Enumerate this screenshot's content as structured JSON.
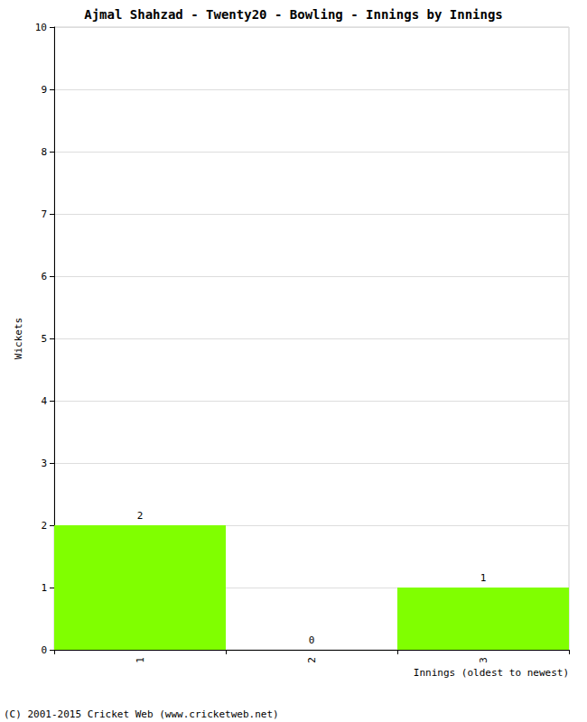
{
  "chart_data": {
    "type": "bar",
    "title": "Ajmal Shahzad - Twenty20 - Bowling - Innings by Innings",
    "x_label": "Innings (oldest to newest)",
    "y_label": "Wickets",
    "categories": [
      "1",
      "2",
      "3"
    ],
    "values": [
      2,
      0,
      1
    ],
    "color": "#80ff00",
    "ylim": [
      0,
      10
    ],
    "yticks": [
      0,
      1,
      2,
      3,
      4,
      5,
      6,
      7,
      8,
      9,
      10
    ],
    "grid": true,
    "data_labels": true,
    "annotations": [
      "(C) 2001-2015 Cricket Web (www.cricketweb.net)"
    ]
  }
}
